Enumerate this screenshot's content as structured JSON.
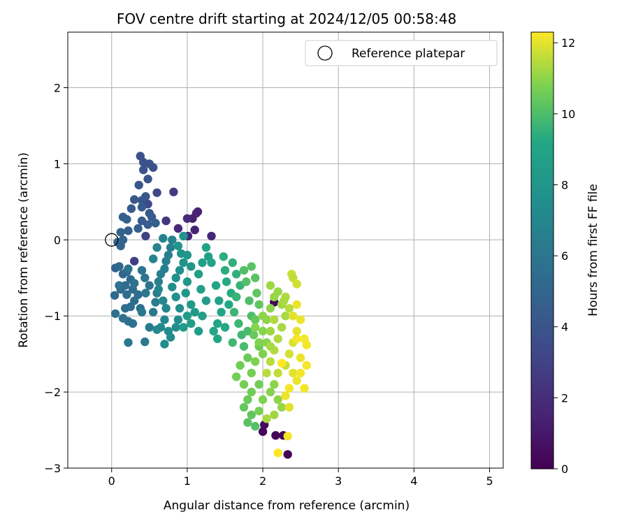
{
  "chart_data": {
    "type": "scatter",
    "title": "FOV centre drift starting at 2024/12/05 00:58:48",
    "xlabel": "Angular distance from reference (arcmin)",
    "ylabel": "Rotation from reference (arcmin)",
    "xlim": [
      -0.58,
      5.18
    ],
    "ylim": [
      -3.0,
      2.73
    ],
    "xticks": [
      0,
      1,
      2,
      3,
      4,
      5
    ],
    "yticks": [
      -3,
      -2,
      -1,
      0,
      1,
      2
    ],
    "xtick_labels": [
      "0",
      "1",
      "2",
      "3",
      "4",
      "5"
    ],
    "ytick_labels": [
      "−3",
      "−2",
      "−1",
      "0",
      "1",
      "2"
    ],
    "grid": true,
    "legend": {
      "location": "top-right",
      "entries": [
        {
          "label": "Reference platepar",
          "marker": "open-circle"
        }
      ]
    },
    "reference_point": {
      "x": 0,
      "y": 0
    },
    "colorbar": {
      "label": "Hours from first FF file",
      "colormap": "viridis",
      "range": [
        0,
        12.3
      ],
      "ticks": [
        0,
        2,
        4,
        6,
        8,
        10,
        12
      ],
      "tick_labels": [
        "0",
        "2",
        "4",
        "6",
        "8",
        "10",
        "12"
      ]
    },
    "series": [
      {
        "color_by": "hours",
        "points": [
          [
            1.07,
            0.28,
            1.3
          ],
          [
            1.12,
            0.35,
            1.4
          ],
          [
            1.14,
            0.37,
            1.5
          ],
          [
            1.1,
            0.13,
            1.5
          ],
          [
            1.32,
            0.05,
            1.7
          ],
          [
            1.01,
            0.05,
            1.6
          ],
          [
            0.88,
            0.15,
            1.8
          ],
          [
            1.0,
            0.28,
            1.9
          ],
          [
            0.82,
            0.63,
            2.6
          ],
          [
            0.72,
            0.25,
            2.4
          ],
          [
            2.15,
            -0.82,
            0.2
          ],
          [
            2.02,
            -2.43,
            0.4
          ],
          [
            2.0,
            -2.52,
            0.3
          ],
          [
            2.17,
            -2.57,
            0.2
          ],
          [
            2.27,
            -2.57,
            0.2
          ],
          [
            2.33,
            -2.82,
            0.1
          ],
          [
            0.3,
            -0.28,
            2.8
          ],
          [
            0.45,
            0.05,
            3.0
          ],
          [
            0.48,
            0.47,
            3.3
          ],
          [
            0.6,
            0.62,
            3.4
          ],
          [
            0.38,
            1.1,
            3.8
          ],
          [
            0.42,
            1.02,
            3.9
          ],
          [
            0.5,
            1.0,
            3.9
          ],
          [
            0.55,
            0.95,
            3.8
          ],
          [
            0.42,
            0.92,
            4.0
          ],
          [
            0.48,
            0.8,
            4.0
          ],
          [
            0.36,
            0.72,
            4.1
          ],
          [
            0.45,
            0.57,
            4.1
          ],
          [
            0.3,
            0.53,
            4.2
          ],
          [
            0.4,
            0.52,
            4.1
          ],
          [
            0.4,
            0.43,
            4.3
          ],
          [
            0.26,
            0.41,
            4.3
          ],
          [
            0.5,
            0.35,
            4.3
          ],
          [
            0.53,
            0.3,
            4.4
          ],
          [
            0.4,
            0.25,
            4.4
          ],
          [
            0.48,
            0.2,
            4.5
          ],
          [
            0.58,
            0.22,
            4.6
          ],
          [
            0.35,
            0.15,
            4.6
          ],
          [
            0.2,
            0.27,
            4.7
          ],
          [
            0.15,
            0.3,
            4.6
          ],
          [
            0.22,
            0.12,
            4.7
          ],
          [
            0.12,
            0.1,
            4.8
          ],
          [
            0.15,
            0.0,
            4.9
          ],
          [
            0.08,
            -0.03,
            4.9
          ],
          [
            0.12,
            -0.08,
            5.0
          ],
          [
            0.05,
            -0.37,
            5.0
          ],
          [
            0.1,
            -0.35,
            5.1
          ],
          [
            0.15,
            -0.45,
            5.1
          ],
          [
            0.2,
            -0.42,
            5.2
          ],
          [
            0.25,
            -0.52,
            5.2
          ],
          [
            0.18,
            -0.6,
            5.3
          ],
          [
            0.12,
            -0.65,
            5.3
          ],
          [
            0.28,
            -0.65,
            5.3
          ],
          [
            0.2,
            -0.72,
            5.4
          ],
          [
            0.35,
            -0.72,
            5.4
          ],
          [
            0.04,
            -0.73,
            5.3
          ],
          [
            0.3,
            -0.8,
            5.5
          ],
          [
            0.25,
            -0.88,
            5.5
          ],
          [
            0.18,
            -0.9,
            5.6
          ],
          [
            0.38,
            -0.9,
            5.6
          ],
          [
            0.05,
            -0.97,
            5.6
          ],
          [
            0.15,
            -1.03,
            5.7
          ],
          [
            0.22,
            -1.07,
            5.7
          ],
          [
            0.28,
            -1.1,
            5.8
          ],
          [
            0.1,
            -0.6,
            5.8
          ],
          [
            0.3,
            -0.57,
            5.8
          ],
          [
            0.4,
            -0.4,
            5.9
          ],
          [
            0.22,
            -0.38,
            5.9
          ],
          [
            0.44,
            -0.5,
            6.0
          ],
          [
            0.5,
            -0.6,
            6.0
          ],
          [
            0.45,
            -0.7,
            6.1
          ],
          [
            0.4,
            -0.95,
            6.1
          ],
          [
            0.22,
            -1.35,
            6.2
          ],
          [
            0.44,
            -1.34,
            6.2
          ],
          [
            0.5,
            -1.15,
            6.3
          ],
          [
            0.55,
            -0.95,
            6.3
          ],
          [
            0.58,
            -0.82,
            6.4
          ],
          [
            0.6,
            -0.7,
            6.4
          ],
          [
            0.62,
            -0.55,
            6.5
          ],
          [
            0.65,
            -0.45,
            6.5
          ],
          [
            0.7,
            -0.38,
            6.6
          ],
          [
            0.72,
            -0.28,
            6.6
          ],
          [
            0.75,
            -0.2,
            6.7
          ],
          [
            0.78,
            -0.1,
            6.7
          ],
          [
            0.8,
            0.0,
            6.8
          ],
          [
            0.68,
            0.02,
            6.8
          ],
          [
            0.6,
            -0.1,
            6.9
          ],
          [
            0.55,
            -0.25,
            6.9
          ],
          [
            0.62,
            -0.65,
            7.0
          ],
          [
            0.68,
            -0.8,
            7.0
          ],
          [
            0.72,
            -0.9,
            7.1
          ],
          [
            0.7,
            -1.05,
            7.1
          ],
          [
            0.65,
            -1.15,
            7.2
          ],
          [
            0.6,
            -1.18,
            7.2
          ],
          [
            0.75,
            -1.2,
            7.3
          ],
          [
            0.78,
            -1.28,
            7.3
          ],
          [
            0.7,
            -1.37,
            7.4
          ],
          [
            0.85,
            -1.15,
            7.4
          ],
          [
            0.88,
            -1.05,
            7.5
          ],
          [
            0.9,
            -0.9,
            7.5
          ],
          [
            0.85,
            -0.75,
            7.6
          ],
          [
            0.8,
            -0.62,
            7.6
          ],
          [
            0.85,
            -0.5,
            7.7
          ],
          [
            0.9,
            -0.4,
            7.7
          ],
          [
            0.95,
            -0.3,
            7.8
          ],
          [
            0.92,
            -0.18,
            7.8
          ],
          [
            0.88,
            -0.08,
            7.9
          ],
          [
            0.95,
            0.05,
            7.9
          ],
          [
            1.0,
            -0.2,
            8.0
          ],
          [
            1.05,
            -0.35,
            8.0
          ],
          [
            1.0,
            -0.55,
            8.1
          ],
          [
            0.98,
            -0.7,
            8.1
          ],
          [
            1.05,
            -0.85,
            8.2
          ],
          [
            1.1,
            -0.95,
            8.2
          ],
          [
            1.0,
            -1.0,
            8.3
          ],
          [
            0.95,
            -1.15,
            8.3
          ],
          [
            1.05,
            -1.1,
            8.4
          ],
          [
            1.15,
            -1.2,
            8.4
          ],
          [
            1.2,
            -1.0,
            8.5
          ],
          [
            1.25,
            -0.8,
            8.5
          ],
          [
            1.18,
            -0.65,
            8.6
          ],
          [
            1.15,
            -0.45,
            8.6
          ],
          [
            1.2,
            -0.3,
            8.7
          ],
          [
            1.28,
            -0.22,
            8.7
          ],
          [
            1.25,
            -0.1,
            8.8
          ],
          [
            1.32,
            -0.3,
            8.8
          ],
          [
            1.38,
            -0.6,
            8.9
          ],
          [
            1.42,
            -0.8,
            8.9
          ],
          [
            1.45,
            -0.95,
            9.0
          ],
          [
            1.4,
            -1.1,
            9.0
          ],
          [
            1.35,
            -1.2,
            9.1
          ],
          [
            1.4,
            -1.3,
            9.1
          ],
          [
            1.5,
            -1.15,
            9.2
          ],
          [
            1.55,
            -0.85,
            9.2
          ],
          [
            1.58,
            -0.7,
            9.3
          ],
          [
            1.52,
            -0.55,
            9.3
          ],
          [
            1.5,
            -0.4,
            9.4
          ],
          [
            1.48,
            -0.22,
            9.4
          ],
          [
            1.6,
            -0.3,
            9.5
          ],
          [
            1.65,
            -0.45,
            9.5
          ],
          [
            1.7,
            -0.6,
            9.6
          ],
          [
            1.65,
            -0.75,
            9.6
          ],
          [
            1.62,
            -0.95,
            9.7
          ],
          [
            1.68,
            -1.1,
            9.7
          ],
          [
            1.72,
            -1.25,
            9.8
          ],
          [
            1.6,
            -1.35,
            9.8
          ],
          [
            1.75,
            -1.4,
            9.9
          ],
          [
            1.8,
            -1.2,
            9.9
          ],
          [
            1.85,
            -1.0,
            10.0
          ],
          [
            1.82,
            -0.8,
            10.0
          ],
          [
            1.78,
            -0.55,
            10.1
          ],
          [
            1.75,
            -0.4,
            10.1
          ],
          [
            1.85,
            -0.35,
            10.2
          ],
          [
            1.9,
            -0.5,
            10.2
          ],
          [
            1.92,
            -0.7,
            10.3
          ],
          [
            1.95,
            -0.85,
            10.3
          ],
          [
            1.9,
            -1.05,
            10.4
          ],
          [
            1.88,
            -1.25,
            10.4
          ],
          [
            1.95,
            -1.4,
            10.5
          ],
          [
            1.8,
            -1.55,
            10.5
          ],
          [
            1.7,
            -1.65,
            10.6
          ],
          [
            1.65,
            -1.8,
            10.6
          ],
          [
            1.75,
            -1.9,
            10.7
          ],
          [
            1.85,
            -1.75,
            10.7
          ],
          [
            1.9,
            -1.6,
            10.8
          ],
          [
            2.0,
            -1.5,
            10.8
          ],
          [
            2.05,
            -1.35,
            10.9
          ],
          [
            2.0,
            -1.2,
            10.9
          ],
          [
            2.05,
            -1.05,
            11.0
          ],
          [
            2.1,
            -0.9,
            11.0
          ],
          [
            2.15,
            -0.75,
            11.1
          ],
          [
            2.2,
            -0.68,
            11.1
          ],
          [
            2.1,
            -0.6,
            11.2
          ],
          [
            2.25,
            -0.85,
            11.2
          ],
          [
            2.3,
            -1.0,
            11.3
          ],
          [
            2.25,
            -1.15,
            11.3
          ],
          [
            2.2,
            -1.3,
            11.4
          ],
          [
            2.15,
            -1.45,
            11.4
          ],
          [
            2.1,
            -1.6,
            11.5
          ],
          [
            2.05,
            -1.75,
            11.5
          ],
          [
            1.95,
            -1.9,
            10.6
          ],
          [
            1.85,
            -2.0,
            10.6
          ],
          [
            1.8,
            -2.1,
            10.5
          ],
          [
            1.75,
            -2.2,
            10.4
          ],
          [
            1.85,
            -2.3,
            10.3
          ],
          [
            1.8,
            -2.4,
            10.2
          ],
          [
            1.9,
            -2.45,
            10.1
          ],
          [
            1.95,
            -2.25,
            10.7
          ],
          [
            2.0,
            -2.1,
            10.8
          ],
          [
            2.1,
            -2.0,
            10.9
          ],
          [
            2.15,
            -1.9,
            11.0
          ],
          [
            2.2,
            -2.1,
            11.0
          ],
          [
            2.25,
            -2.2,
            11.1
          ],
          [
            2.15,
            -2.3,
            11.2
          ],
          [
            2.05,
            -2.35,
            11.3
          ],
          [
            2.2,
            -1.75,
            11.6
          ],
          [
            2.3,
            -1.65,
            11.7
          ],
          [
            2.35,
            -1.5,
            11.8
          ],
          [
            2.4,
            -1.35,
            11.9
          ],
          [
            2.45,
            -1.2,
            12.0
          ],
          [
            2.4,
            -1.0,
            12.0
          ],
          [
            2.45,
            -0.85,
            12.1
          ],
          [
            2.5,
            -1.05,
            12.1
          ],
          [
            2.45,
            -1.3,
            12.2
          ],
          [
            2.55,
            -1.3,
            12.2
          ],
          [
            2.58,
            -1.38,
            12.2
          ],
          [
            2.5,
            -1.55,
            12.1
          ],
          [
            2.4,
            -1.75,
            12.0
          ],
          [
            2.45,
            -1.85,
            12.1
          ],
          [
            2.35,
            -1.95,
            12.2
          ],
          [
            2.5,
            -1.75,
            12.2
          ],
          [
            2.58,
            -1.65,
            12.2
          ],
          [
            2.55,
            -1.95,
            12.2
          ],
          [
            2.3,
            -2.05,
            12.1
          ],
          [
            2.35,
            -2.2,
            12.0
          ],
          [
            2.25,
            -1.62,
            12.3
          ],
          [
            2.2,
            -2.8,
            12.3
          ],
          [
            2.33,
            -2.58,
            12.2
          ],
          [
            2.38,
            -0.45,
            11.7
          ],
          [
            2.4,
            -0.5,
            11.6
          ],
          [
            2.45,
            -0.58,
            11.8
          ],
          [
            2.3,
            -0.75,
            11.4
          ],
          [
            2.35,
            -0.9,
            11.5
          ],
          [
            2.28,
            -0.8,
            11.3
          ],
          [
            2.1,
            -1.2,
            11.2
          ],
          [
            2.0,
            -1.0,
            11.0
          ],
          [
            1.9,
            -1.15,
            10.9
          ],
          [
            1.95,
            -1.35,
            10.8
          ],
          [
            2.1,
            -1.4,
            11.3
          ],
          [
            2.15,
            -1.05,
            11.4
          ]
        ]
      }
    ]
  }
}
